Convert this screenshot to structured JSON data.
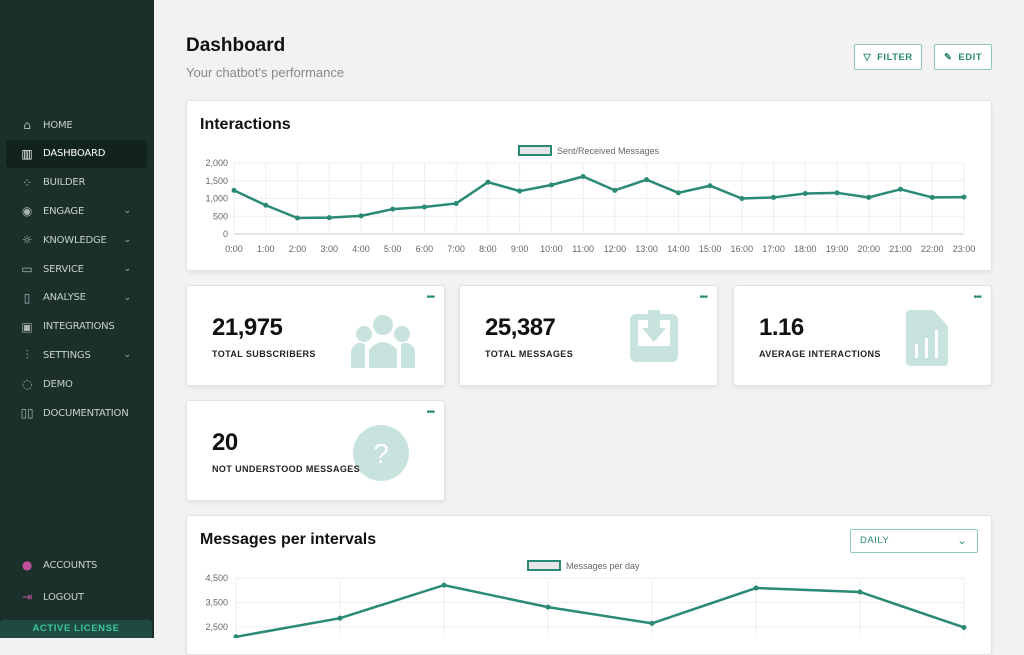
{
  "sidebar": {
    "items": [
      {
        "label": "HOME",
        "icon": "home-icon",
        "glyph": "⌂"
      },
      {
        "label": "DASHBOARD",
        "icon": "bar-chart-icon",
        "glyph": "▥",
        "active": true
      },
      {
        "label": "BUILDER",
        "icon": "builder-icon",
        "glyph": "⁘"
      },
      {
        "label": "ENGAGE",
        "icon": "eye-icon",
        "glyph": "◉",
        "chevron": true
      },
      {
        "label": "KNOWLEDGE",
        "icon": "lightbulb-icon",
        "glyph": "☼",
        "chevron": true
      },
      {
        "label": "SERVICE",
        "icon": "ticket-icon",
        "glyph": "▭",
        "chevron": true
      },
      {
        "label": "ANALYSE",
        "icon": "file-search-icon",
        "glyph": "▯",
        "chevron": true
      },
      {
        "label": "INTEGRATIONS",
        "icon": "chip-icon",
        "glyph": "▣"
      },
      {
        "label": "SETTINGS",
        "icon": "sliders-icon",
        "glyph": "⫶",
        "chevron": true
      },
      {
        "label": "DEMO",
        "icon": "chat-icon",
        "glyph": "◌"
      },
      {
        "label": "DOCUMENTATION",
        "icon": "book-icon",
        "glyph": "▯▯"
      }
    ],
    "bottom": [
      {
        "label": "ACCOUNTS",
        "icon": "user-icon",
        "glyph": "●"
      },
      {
        "label": "LOGOUT",
        "icon": "logout-icon",
        "glyph": "⇥"
      }
    ],
    "license": "ACTIVE LICENSE"
  },
  "header": {
    "title": "Dashboard",
    "subtitle": "Your chatbot's performance",
    "filter": "FILTER",
    "edit": "EDIT"
  },
  "colors": {
    "accent": "#2a8a74",
    "icon_bg": "#c8e3de",
    "sidebar": "#1b2f2b"
  },
  "stats": [
    {
      "value": "21,975",
      "label": "TOTAL SUBSCRIBERS",
      "icon": "users-icon"
    },
    {
      "value": "25,387",
      "label": "TOTAL MESSAGES",
      "icon": "inbox-download-icon"
    },
    {
      "value": "1.16",
      "label": "AVERAGE INTERACTIONS",
      "icon": "report-icon"
    },
    {
      "value": "20",
      "label": "NOT UNDERSTOOD MESSAGES",
      "icon": "question-icon"
    }
  ],
  "intervals": {
    "title": "Messages per intervals",
    "select": "DAILY"
  },
  "chart_data": [
    {
      "type": "line",
      "title": "Interactions",
      "legend": "Sent/Received Messages",
      "legend_position": "top",
      "x": [
        "0:00",
        "1:00",
        "2:00",
        "3:00",
        "4:00",
        "5:00",
        "6:00",
        "7:00",
        "8:00",
        "9:00",
        "10:00",
        "11:00",
        "12:00",
        "13:00",
        "14:00",
        "15:00",
        "16:00",
        "17:00",
        "18:00",
        "19:00",
        "20:00",
        "21:00",
        "22:00",
        "23:00"
      ],
      "values": [
        1230,
        810,
        450,
        460,
        510,
        700,
        760,
        860,
        1460,
        1210,
        1380,
        1620,
        1230,
        1530,
        1160,
        1360,
        1000,
        1030,
        1140,
        1160,
        1030,
        1260,
        1030,
        1040
      ],
      "yticks": [
        "2,000",
        "1,500",
        "1,000",
        "500",
        "0"
      ],
      "ylim": [
        0,
        2000
      ],
      "grid": true
    },
    {
      "type": "line",
      "title": "Messages per intervals",
      "legend": "Messages per day",
      "legend_position": "top",
      "values": [
        2100,
        2860,
        4210,
        3310,
        2650,
        4090,
        3930,
        2480
      ],
      "yticks": [
        "4,500",
        "3,500",
        "2,500"
      ],
      "ylim": [
        0,
        4500
      ],
      "grid": true
    }
  ]
}
